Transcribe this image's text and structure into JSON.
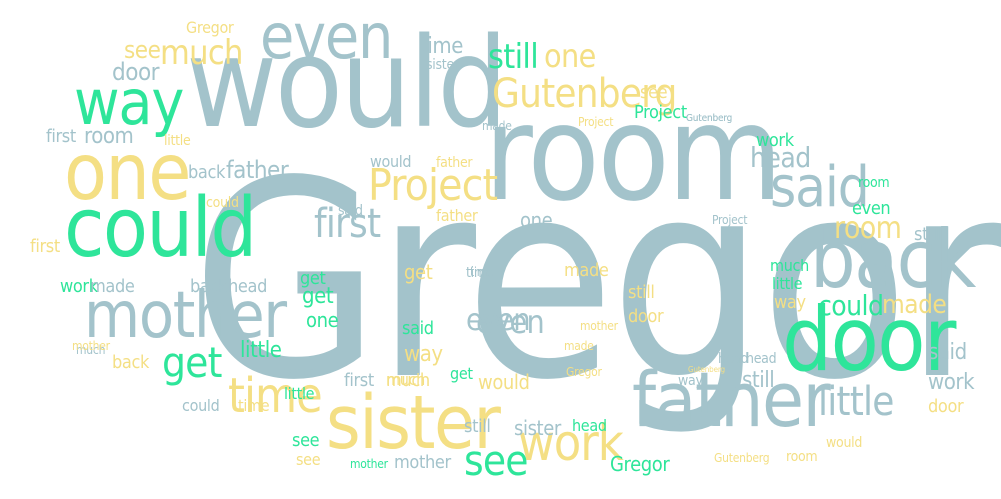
{
  "palette": {
    "grey": "#a3c3cb",
    "yellow": "#f4df84",
    "green": "#2ee59a",
    "background": "#ffffff"
  },
  "words": [
    {
      "text": "Gregor"
    },
    {
      "text": "room"
    },
    {
      "text": "would"
    },
    {
      "text": "could"
    },
    {
      "text": "one"
    },
    {
      "text": "door"
    },
    {
      "text": "father"
    },
    {
      "text": "sister"
    },
    {
      "text": "back"
    },
    {
      "text": "mother"
    },
    {
      "text": "even"
    },
    {
      "text": "way"
    },
    {
      "text": "said"
    },
    {
      "text": "time"
    },
    {
      "text": "work"
    },
    {
      "text": "Project"
    },
    {
      "text": "much"
    },
    {
      "text": "see"
    },
    {
      "text": "first"
    },
    {
      "text": "little"
    },
    {
      "text": "Gutenberg"
    },
    {
      "text": "still"
    },
    {
      "text": "one"
    },
    {
      "text": "get"
    },
    {
      "text": "head"
    },
    {
      "text": "room"
    },
    {
      "text": "see"
    },
    {
      "text": "door"
    },
    {
      "text": "even"
    },
    {
      "text": "time"
    },
    {
      "text": "sister"
    },
    {
      "text": "Gregor"
    },
    {
      "text": "Gutenberg"
    },
    {
      "text": "see"
    },
    {
      "text": "Project"
    },
    {
      "text": "made"
    },
    {
      "text": "Project"
    },
    {
      "text": "Gutenberg"
    },
    {
      "text": "first"
    },
    {
      "text": "room"
    },
    {
      "text": "little"
    },
    {
      "text": "back"
    },
    {
      "text": "father"
    },
    {
      "text": "could"
    },
    {
      "text": "first"
    },
    {
      "text": "work"
    },
    {
      "text": "made"
    },
    {
      "text": "back"
    },
    {
      "text": "head"
    },
    {
      "text": "mother"
    },
    {
      "text": "much"
    },
    {
      "text": "would"
    },
    {
      "text": "father"
    },
    {
      "text": "said"
    },
    {
      "text": "father"
    },
    {
      "text": "one"
    },
    {
      "text": "head"
    },
    {
      "text": "work"
    },
    {
      "text": "even"
    },
    {
      "text": "Project"
    },
    {
      "text": "room"
    },
    {
      "text": "still"
    },
    {
      "text": "get"
    },
    {
      "text": "get"
    },
    {
      "text": "one"
    },
    {
      "text": "time"
    },
    {
      "text": "said"
    },
    {
      "text": "made"
    },
    {
      "text": "still"
    },
    {
      "text": "much"
    },
    {
      "text": "little"
    },
    {
      "text": "way"
    },
    {
      "text": "could"
    },
    {
      "text": "made"
    },
    {
      "text": "get"
    },
    {
      "text": "little"
    },
    {
      "text": "way"
    },
    {
      "text": "even"
    },
    {
      "text": "mother"
    },
    {
      "text": "door"
    },
    {
      "text": "head"
    },
    {
      "text": "said"
    },
    {
      "text": "work"
    },
    {
      "text": "first"
    },
    {
      "text": "much"
    },
    {
      "text": "Gregor"
    },
    {
      "text": "Gutenberg"
    },
    {
      "text": "way"
    },
    {
      "text": "still"
    },
    {
      "text": "sister"
    },
    {
      "text": "get"
    },
    {
      "text": "would"
    },
    {
      "text": "could"
    },
    {
      "text": "little"
    },
    {
      "text": "door"
    },
    {
      "text": "sister"
    },
    {
      "text": "head"
    },
    {
      "text": "see"
    },
    {
      "text": "mother"
    },
    {
      "text": "mother"
    },
    {
      "text": "see"
    },
    {
      "text": "Gregor"
    },
    {
      "text": "Gutenberg"
    },
    {
      "text": "room"
    },
    {
      "text": "would"
    },
    {
      "text": "time"
    },
    {
      "text": "back"
    },
    {
      "text": "still"
    },
    {
      "text": "made"
    },
    {
      "text": "time"
    },
    {
      "text": "much"
    }
  ]
}
